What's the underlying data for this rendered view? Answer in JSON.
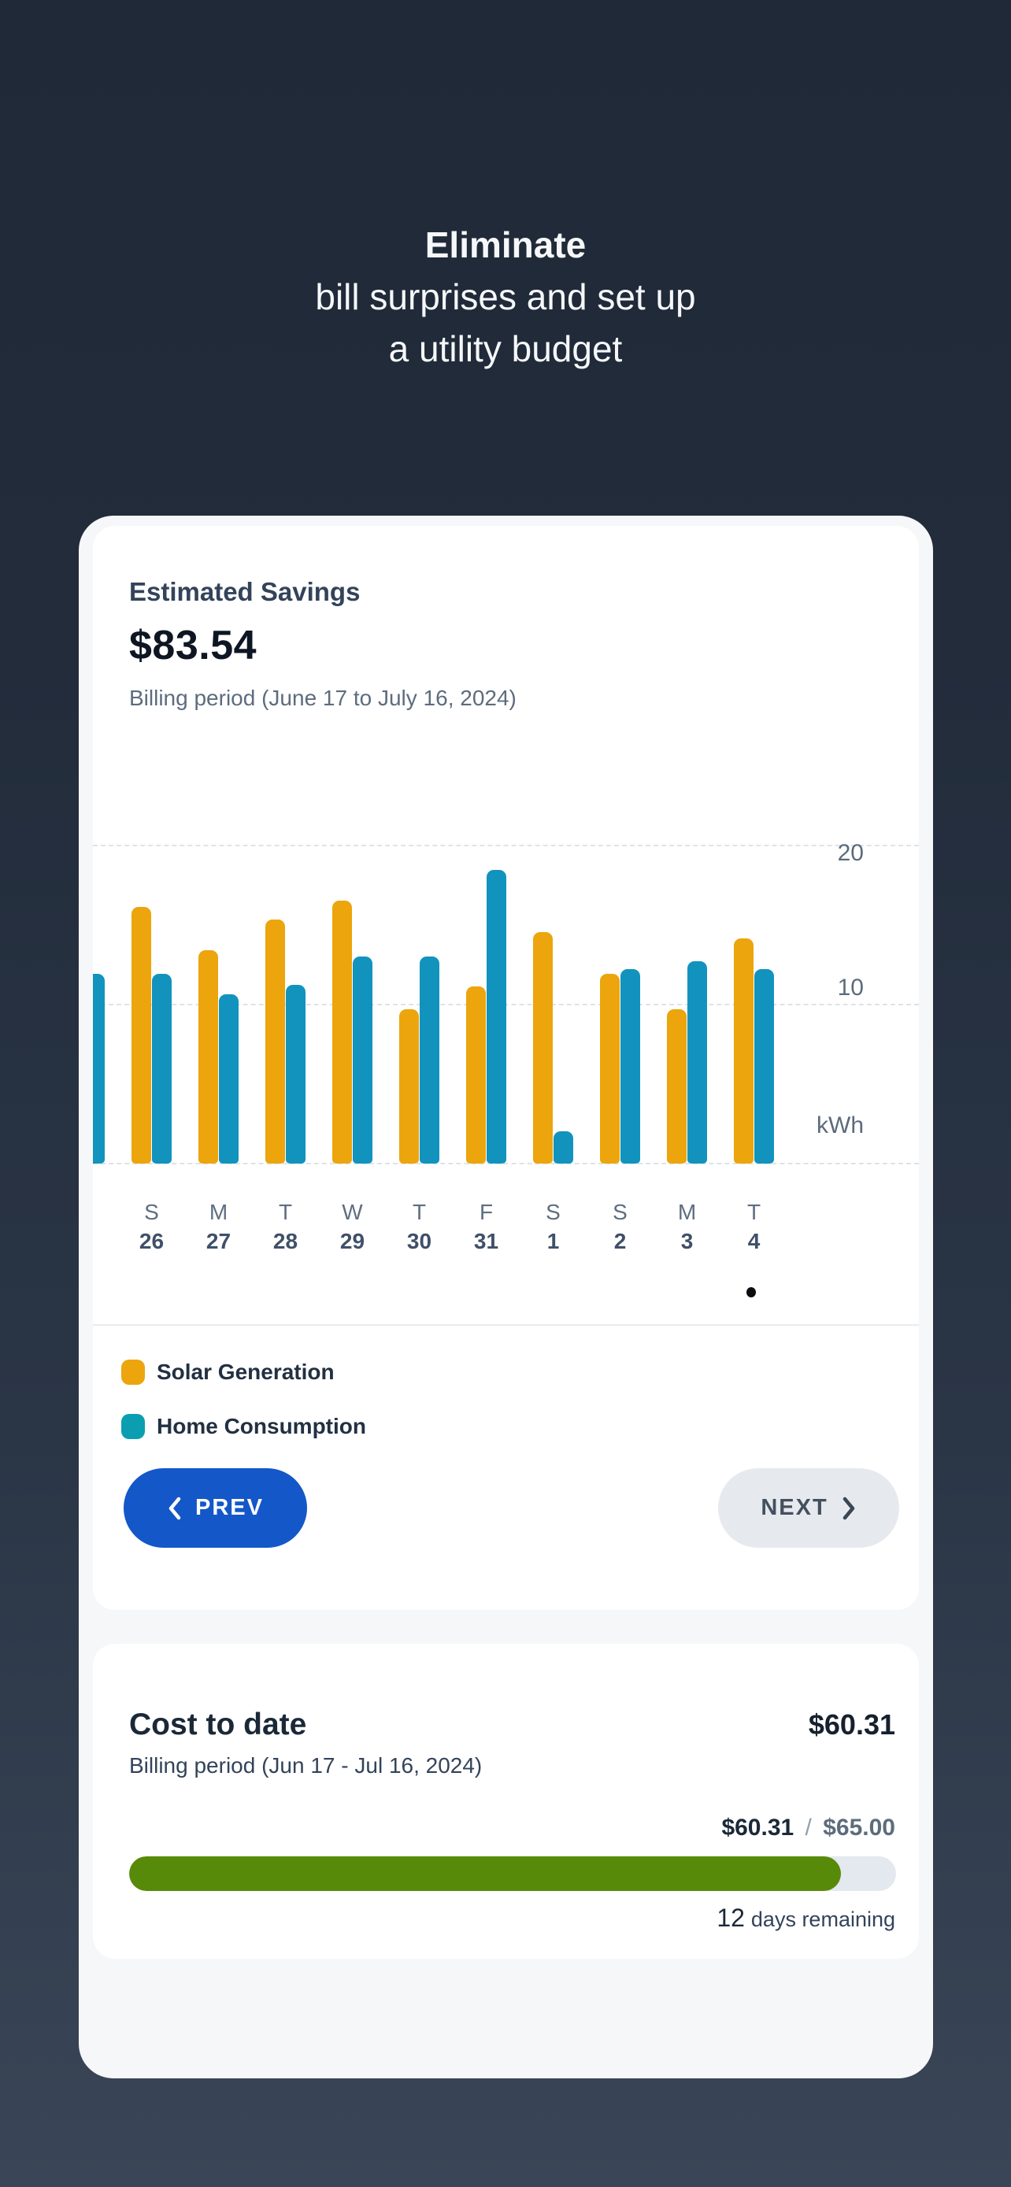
{
  "headline": {
    "line1": "Eliminate",
    "line2": "bill surprises and set up",
    "line3": "a utility budget"
  },
  "savings_card": {
    "title": "Estimated Savings",
    "amount": "$83.54",
    "billing_period": "Billing period (June 17 to July 16, 2024)",
    "legend": [
      {
        "label": "Solar Generation",
        "color": "#ECA50C"
      },
      {
        "label": "Home Consumption",
        "color": "#0B9EB1"
      }
    ],
    "prev_label": "PREV",
    "next_label": "NEXT",
    "prev_button_color": "#1457C8",
    "next_button_color": "#E6EAEF"
  },
  "chart_data": {
    "type": "bar",
    "title": "",
    "unit": "kWh",
    "ylabel": "kWh",
    "ylim": [
      0,
      20.5
    ],
    "yticks": [
      20,
      10
    ],
    "gridlines": "dashed",
    "legend_position": "below",
    "categories": [
      {
        "day": "S",
        "date": "26"
      },
      {
        "day": "M",
        "date": "27"
      },
      {
        "day": "T",
        "date": "28"
      },
      {
        "day": "W",
        "date": "29"
      },
      {
        "day": "T",
        "date": "30"
      },
      {
        "day": "F",
        "date": "31"
      },
      {
        "day": "S",
        "date": "1"
      },
      {
        "day": "S",
        "date": "2"
      },
      {
        "day": "M",
        "date": "3"
      },
      {
        "day": "T",
        "date": "4"
      }
    ],
    "series": [
      {
        "name": "Solar Generation",
        "color": "#ECA50C",
        "values": [
          16.1,
          13.4,
          15.3,
          16.5,
          9.7,
          11.1,
          14.5,
          11.9,
          9.7,
          14.1
        ]
      },
      {
        "name": "Home Consumption",
        "color": "#1193BE",
        "values": [
          11.9,
          10.6,
          11.2,
          13.0,
          13.0,
          18.4,
          2.0,
          12.2,
          12.7,
          12.2
        ]
      }
    ],
    "clipped_prev_consumption": 11.9,
    "page_indicator_dots": 1
  },
  "cost_card": {
    "title": "Cost to date",
    "amount": "$60.31",
    "billing_period": "Billing period (Jun 17 - Jul 16, 2024)",
    "spent": "$60.31",
    "separator": "/",
    "budget": "$65.00",
    "progress_percent": 92.8,
    "progress_color": "#588A09",
    "days_remaining_number": "12",
    "days_remaining_text": "days remaining"
  }
}
